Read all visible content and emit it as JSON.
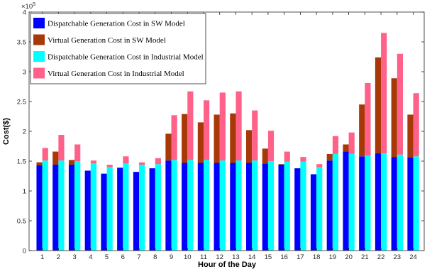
{
  "chart_data": {
    "type": "bar",
    "xlabel": "Hour of the Day",
    "ylabel": "Cost($)",
    "y_multiplier_label": "×10",
    "y_multiplier_exp": "5",
    "ylim": [
      0,
      4
    ],
    "y_unit_note": "values in units of 10^5 $",
    "yticks": [
      "0",
      "0.5",
      "1",
      "1.5",
      "2",
      "2.5",
      "3",
      "3.5",
      "4"
    ],
    "grid": false,
    "legend_position": "top-left",
    "categories": [
      "1",
      "2",
      "3",
      "4",
      "5",
      "6",
      "7",
      "8",
      "9",
      "10",
      "11",
      "12",
      "13",
      "14",
      "15",
      "16",
      "17",
      "18",
      "19",
      "20",
      "21",
      "22",
      "23",
      "24"
    ],
    "groups": [
      {
        "model": "SW",
        "stack": [
          {
            "name": "Dispatchable Generation Cost in SW Model",
            "color": "#0000ff",
            "values": [
              1.43,
              1.44,
              1.44,
              1.34,
              1.29,
              1.39,
              1.32,
              1.38,
              1.51,
              1.47,
              1.47,
              1.47,
              1.47,
              1.47,
              1.46,
              1.44,
              1.38,
              1.28,
              1.51,
              1.66,
              1.58,
              1.63,
              1.57,
              1.56
            ]
          },
          {
            "name": "Virtual Generation Cost in SW Model",
            "color": "#a83808",
            "values": [
              0.05,
              0.22,
              0.08,
              0,
              0,
              0,
              0,
              0,
              0.45,
              0.82,
              0.68,
              0.81,
              0.83,
              0.55,
              0.25,
              0.01,
              0,
              0,
              0.11,
              0.12,
              0.87,
              1.61,
              1.32,
              0.72
            ]
          }
        ]
      },
      {
        "model": "Industrial",
        "stack": [
          {
            "name": "Dispatchable Generation Cost in Industrial Model",
            "color": "#00ffff",
            "values": [
              1.51,
              1.51,
              1.5,
              1.46,
              1.4,
              1.46,
              1.44,
              1.45,
              1.52,
              1.52,
              1.52,
              1.51,
              1.51,
              1.51,
              1.5,
              1.49,
              1.49,
              1.4,
              1.62,
              1.62,
              1.59,
              1.63,
              1.61,
              1.58
            ]
          },
          {
            "name": "Virtual Generation Cost in Industrial Model",
            "color": "#ff6188",
            "values": [
              0.21,
              0.43,
              0.28,
              0.05,
              0.04,
              0.12,
              0.04,
              0.1,
              0.75,
              1.15,
              1.0,
              1.14,
              1.16,
              0.84,
              0.51,
              0.17,
              0.08,
              0.05,
              0.3,
              0.36,
              1.22,
              2.02,
              1.69,
              1.06
            ]
          }
        ]
      }
    ]
  }
}
